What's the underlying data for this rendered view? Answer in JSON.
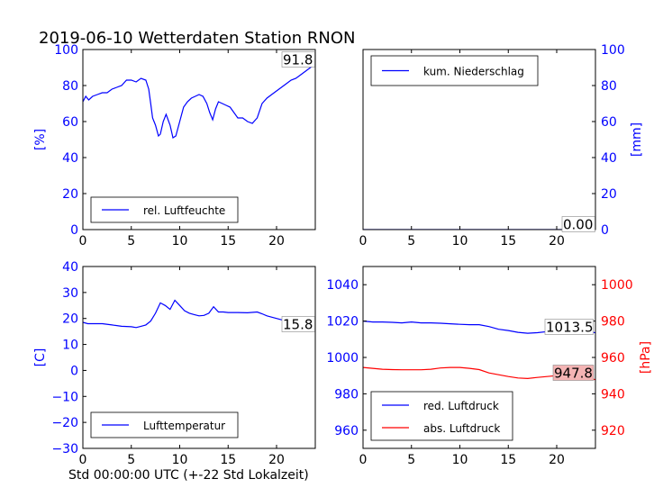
{
  "title": "2019-06-10 Wetterdaten Station RNON",
  "footer_xlabel": "Std 00:00:00 UTC (+-22 Std Lokalzeit)",
  "colors": {
    "blue": "#0000ff",
    "red": "#ff0000",
    "black": "#000000",
    "redbox": "#f4b4b4"
  },
  "chart_data": [
    {
      "id": "humidity",
      "type": "line",
      "ylabel": "[%]",
      "ylabel_color": "#0000ff",
      "xlim": [
        0,
        24
      ],
      "ylim": [
        0,
        100
      ],
      "x_ticks": [
        "0",
        "5",
        "10",
        "15",
        "20"
      ],
      "y_ticks": [
        "0",
        "20",
        "40",
        "60",
        "80",
        "100"
      ],
      "legend": {
        "position": "lower-left",
        "entries": [
          {
            "name": "rel. Luftfeuchte",
            "color": "#0000ff"
          }
        ]
      },
      "last_value_label": "91.8",
      "series": [
        {
          "name": "rel. Luftfeuchte",
          "color": "#0000ff",
          "x": [
            0,
            0.3,
            0.6,
            1.0,
            1.5,
            2.0,
            2.5,
            3.0,
            3.5,
            4.0,
            4.5,
            5.0,
            5.5,
            6.0,
            6.5,
            6.8,
            7.0,
            7.2,
            7.5,
            7.8,
            8.0,
            8.3,
            8.6,
            9.0,
            9.3,
            9.6,
            10.0,
            10.4,
            10.8,
            11.2,
            11.6,
            12.0,
            12.4,
            12.8,
            13.1,
            13.4,
            13.7,
            14.0,
            14.4,
            14.8,
            15.2,
            15.6,
            16.0,
            16.5,
            17.0,
            17.5,
            18.0,
            18.5,
            19.0,
            19.5,
            20.0,
            20.5,
            21.0,
            21.5,
            22.0,
            22.5,
            23.0,
            23.5,
            24.0
          ],
          "y": [
            71,
            74,
            72,
            74,
            75,
            76,
            76,
            78,
            79,
            80,
            83,
            83,
            82,
            84,
            83,
            78,
            70,
            62,
            58,
            52,
            53,
            60,
            64,
            58,
            51,
            52,
            60,
            68,
            71,
            73,
            74,
            75,
            74,
            70,
            65,
            61,
            67,
            71,
            70,
            69,
            68,
            65,
            62,
            62,
            60,
            59,
            62,
            70,
            73,
            75,
            77,
            79,
            81,
            83,
            84,
            86,
            88,
            90,
            91.8
          ]
        }
      ]
    },
    {
      "id": "precip",
      "type": "line",
      "ylabel": "[mm]",
      "ylabel_color": "#0000ff",
      "xlim": [
        0,
        24
      ],
      "ylim": [
        0,
        100
      ],
      "x_ticks": [
        "0",
        "5",
        "10",
        "15",
        "20"
      ],
      "y_ticks": [
        "0",
        "20",
        "40",
        "60",
        "80",
        "100"
      ],
      "legend": {
        "position": "upper-left",
        "entries": [
          {
            "name": "kum. Niederschlag",
            "color": "#0000ff"
          }
        ]
      },
      "last_value_label": "0.00",
      "series": [
        {
          "name": "kum. Niederschlag",
          "color": "#0000ff",
          "x": [
            0,
            24
          ],
          "y": [
            0,
            0
          ]
        }
      ]
    },
    {
      "id": "temperature",
      "type": "line",
      "ylabel": "[C]",
      "ylabel_color": "#0000ff",
      "xlim": [
        0,
        24
      ],
      "ylim": [
        -30,
        40
      ],
      "x_ticks": [
        "0",
        "5",
        "10",
        "15",
        "20"
      ],
      "y_ticks": [
        "−30",
        "−20",
        "−10",
        "0",
        "10",
        "20",
        "30",
        "40"
      ],
      "legend": {
        "position": "lower-left",
        "entries": [
          {
            "name": "Lufttemperatur",
            "color": "#0000ff"
          }
        ]
      },
      "last_value_label": "15.8",
      "series": [
        {
          "name": "Lufttemperatur",
          "color": "#0000ff",
          "x": [
            0,
            0.5,
            1.0,
            2.0,
            3.0,
            4.0,
            5.0,
            5.5,
            6.0,
            6.5,
            7.0,
            7.5,
            8.0,
            8.5,
            9.0,
            9.5,
            10.0,
            10.5,
            11.0,
            11.5,
            12.0,
            12.5,
            13.0,
            13.5,
            14.0,
            14.5,
            15.0,
            16.0,
            17.0,
            18.0,
            18.5,
            19.0,
            20.0,
            21.0,
            22.0,
            23.0,
            24.0
          ],
          "y": [
            18.5,
            18,
            18,
            18,
            17.5,
            17,
            16.8,
            16.5,
            17,
            17.5,
            19,
            22,
            26,
            25,
            23.5,
            27,
            25,
            23,
            22,
            21.5,
            21,
            21.2,
            22,
            24.5,
            22.5,
            22.5,
            22.3,
            22.3,
            22.2,
            22.5,
            21.8,
            21,
            20,
            19,
            18,
            16.5,
            15.8
          ]
        }
      ]
    },
    {
      "id": "pressure",
      "type": "line",
      "ylabel": "",
      "ylabel_right": "[hPa]",
      "ylabel_right_color": "#ff0000",
      "xlim": [
        0,
        24
      ],
      "ylim": [
        950,
        1050
      ],
      "ylim_right": [
        910,
        1010
      ],
      "x_ticks": [
        "0",
        "5",
        "10",
        "15",
        "20"
      ],
      "y_ticks": [
        "960",
        "980",
        "1000",
        "1020",
        "1040"
      ],
      "y_ticks_right": [
        "920",
        "940",
        "960",
        "980",
        "1000"
      ],
      "legend": {
        "position": "lower-left",
        "entries": [
          {
            "name": "red. Luftdruck",
            "color": "#0000ff"
          },
          {
            "name": "abs. Luftdruck",
            "color": "#ff0000"
          }
        ]
      },
      "last_value_label": "1013.5",
      "last_value_label_right": "947.8",
      "series": [
        {
          "name": "red. Luftdruck",
          "color": "#0000ff",
          "axis": "left",
          "x": [
            0,
            1,
            2,
            3,
            4,
            5,
            6,
            7,
            8,
            9,
            10,
            11,
            12,
            13,
            14,
            15,
            16,
            17,
            18,
            19,
            20,
            21,
            22,
            23,
            24
          ],
          "y": [
            1020,
            1019.5,
            1019.5,
            1019.3,
            1019,
            1019.5,
            1019,
            1019,
            1018.8,
            1018.5,
            1018.2,
            1018,
            1018,
            1017,
            1015.5,
            1014.8,
            1013.8,
            1013.3,
            1013.6,
            1014.2,
            1015,
            1015.5,
            1015.8,
            1015,
            1013.5
          ]
        },
        {
          "name": "abs. Luftdruck",
          "color": "#ff0000",
          "axis": "right",
          "x": [
            0,
            1,
            2,
            3,
            4,
            5,
            6,
            7,
            8,
            9,
            10,
            11,
            12,
            13,
            14,
            15,
            16,
            17,
            18,
            19,
            20,
            21,
            22,
            23,
            24
          ],
          "y": [
            954.5,
            954,
            953.5,
            953.3,
            953.2,
            953.2,
            953.2,
            953.5,
            954.2,
            954.5,
            954.5,
            954,
            953.3,
            951.5,
            950.5,
            949.5,
            948.7,
            948.4,
            949,
            949.5,
            950,
            949.8,
            949.5,
            948.8,
            947.8
          ]
        }
      ]
    }
  ]
}
